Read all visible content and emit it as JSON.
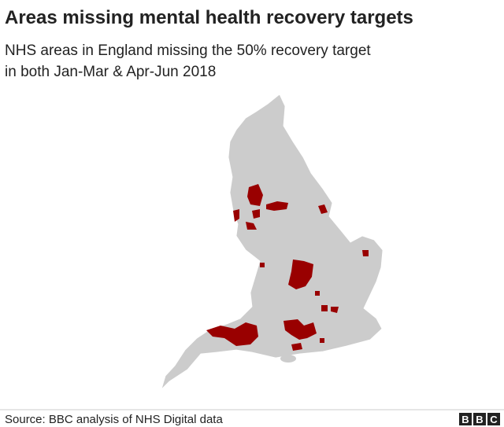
{
  "title": "Areas missing mental health recovery targets",
  "subtitle": [
    "NHS areas in England missing the 50% recovery target",
    "in both Jan-Mar & Apr-Jun 2018"
  ],
  "source": "Source: BBC analysis of NHS Digital data",
  "logo": [
    "B",
    "B",
    "C"
  ]
}
